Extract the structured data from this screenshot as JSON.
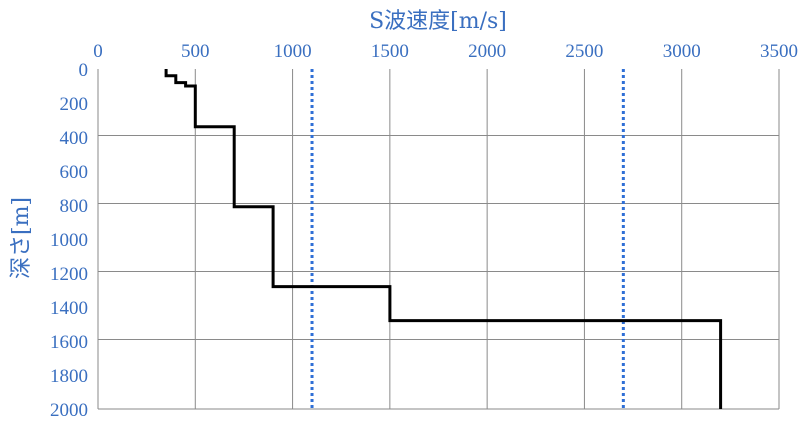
{
  "chart_data": {
    "type": "line",
    "title": "",
    "xlabel": "S波速度[m/s]",
    "ylabel": "深さ[m]",
    "x_axis_position": "top",
    "y_axis_inverted": true,
    "xlim": [
      0,
      3500
    ],
    "ylim": [
      0,
      2000
    ],
    "xticks": [
      0,
      500,
      1000,
      1500,
      2000,
      2500,
      3000,
      3500
    ],
    "yticks": [
      0,
      200,
      400,
      600,
      800,
      1000,
      1200,
      1400,
      1600,
      1800,
      2000
    ],
    "grid": true,
    "colors": {
      "text": "#3a6fc0",
      "profile": "#000000",
      "reference": "#2f6fd6",
      "grid": "#8a8a8a"
    },
    "series": [
      {
        "style": "solid",
        "points": [
          [
            350,
            0
          ],
          [
            350,
            40
          ],
          [
            400,
            40
          ],
          [
            400,
            80
          ],
          [
            450,
            80
          ],
          [
            450,
            100
          ],
          [
            500,
            100
          ],
          [
            500,
            340
          ],
          [
            700,
            340
          ],
          [
            700,
            810
          ],
          [
            900,
            810
          ],
          [
            900,
            1280
          ],
          [
            1500,
            1280
          ],
          [
            1500,
            1480
          ],
          [
            3200,
            1480
          ],
          [
            3200,
            2000
          ]
        ]
      }
    ],
    "reference_lines": [
      {
        "x": 1100,
        "style": "dotted"
      },
      {
        "x": 2700,
        "style": "dotted"
      }
    ]
  }
}
